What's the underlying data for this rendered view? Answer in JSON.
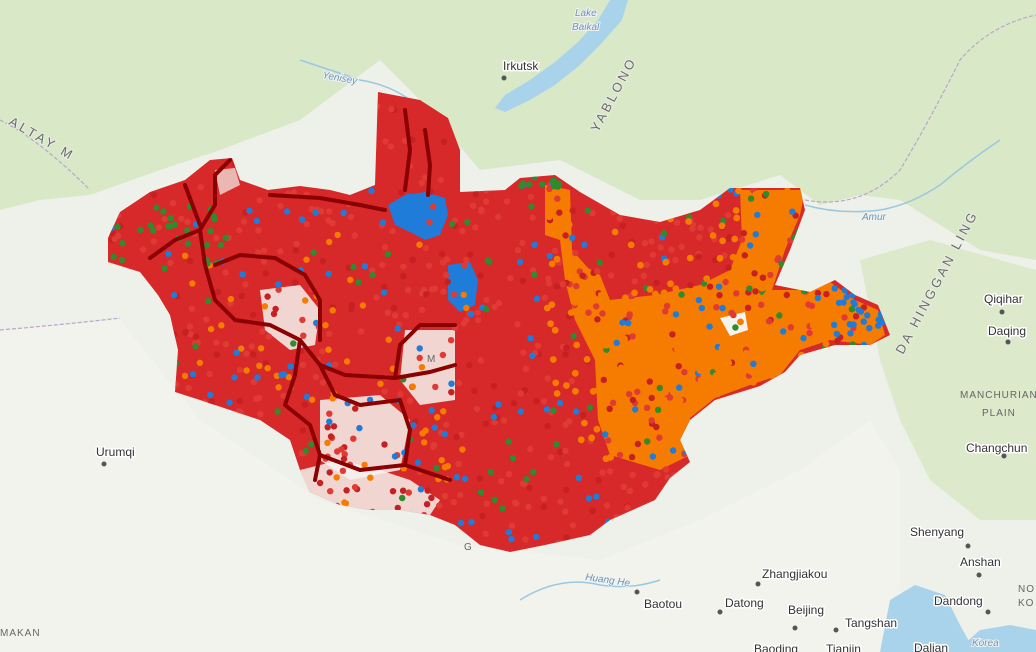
{
  "map": {
    "cities": [
      {
        "name": "Irkutsk"
      },
      {
        "name": "Urumqi"
      },
      {
        "name": "Qiqihar"
      },
      {
        "name": "Daqing"
      },
      {
        "name": "Changchun"
      },
      {
        "name": "Shenyang"
      },
      {
        "name": "Anshan"
      },
      {
        "name": "Zhangjiakou"
      },
      {
        "name": "Baotou"
      },
      {
        "name": "Datong"
      },
      {
        "name": "Beijing"
      },
      {
        "name": "Tangshan"
      },
      {
        "name": "Dandong"
      },
      {
        "name": "Dalian"
      },
      {
        "name": "Baoding"
      },
      {
        "name": "Tianjin"
      }
    ],
    "water_labels": [
      "Lake",
      "Baikal",
      "Yenisey",
      "Amur",
      "Huang He",
      "Korea"
    ],
    "range_labels": [
      "ALTAY M",
      "YABLONO",
      "DA HINGGAN LING"
    ],
    "plain_labels": [
      "MANCHURIAN",
      "PLAIN",
      "MAKAN",
      "NO",
      "KO",
      "G",
      "M"
    ],
    "colors": {
      "land": "#eef0ea",
      "forest": "#d9e8c7",
      "desert": "#f2f2ec",
      "water": "#a9d3ea",
      "red_points": "#d7282a",
      "orange_points": "#f57c00",
      "blue_points": "#1f7cd9",
      "green_points": "#2e8b2e",
      "roads": "#8b0000",
      "border": "#b9a6c9"
    },
    "point_layers": [
      "red_points",
      "orange_points",
      "blue_points",
      "green_points"
    ]
  }
}
